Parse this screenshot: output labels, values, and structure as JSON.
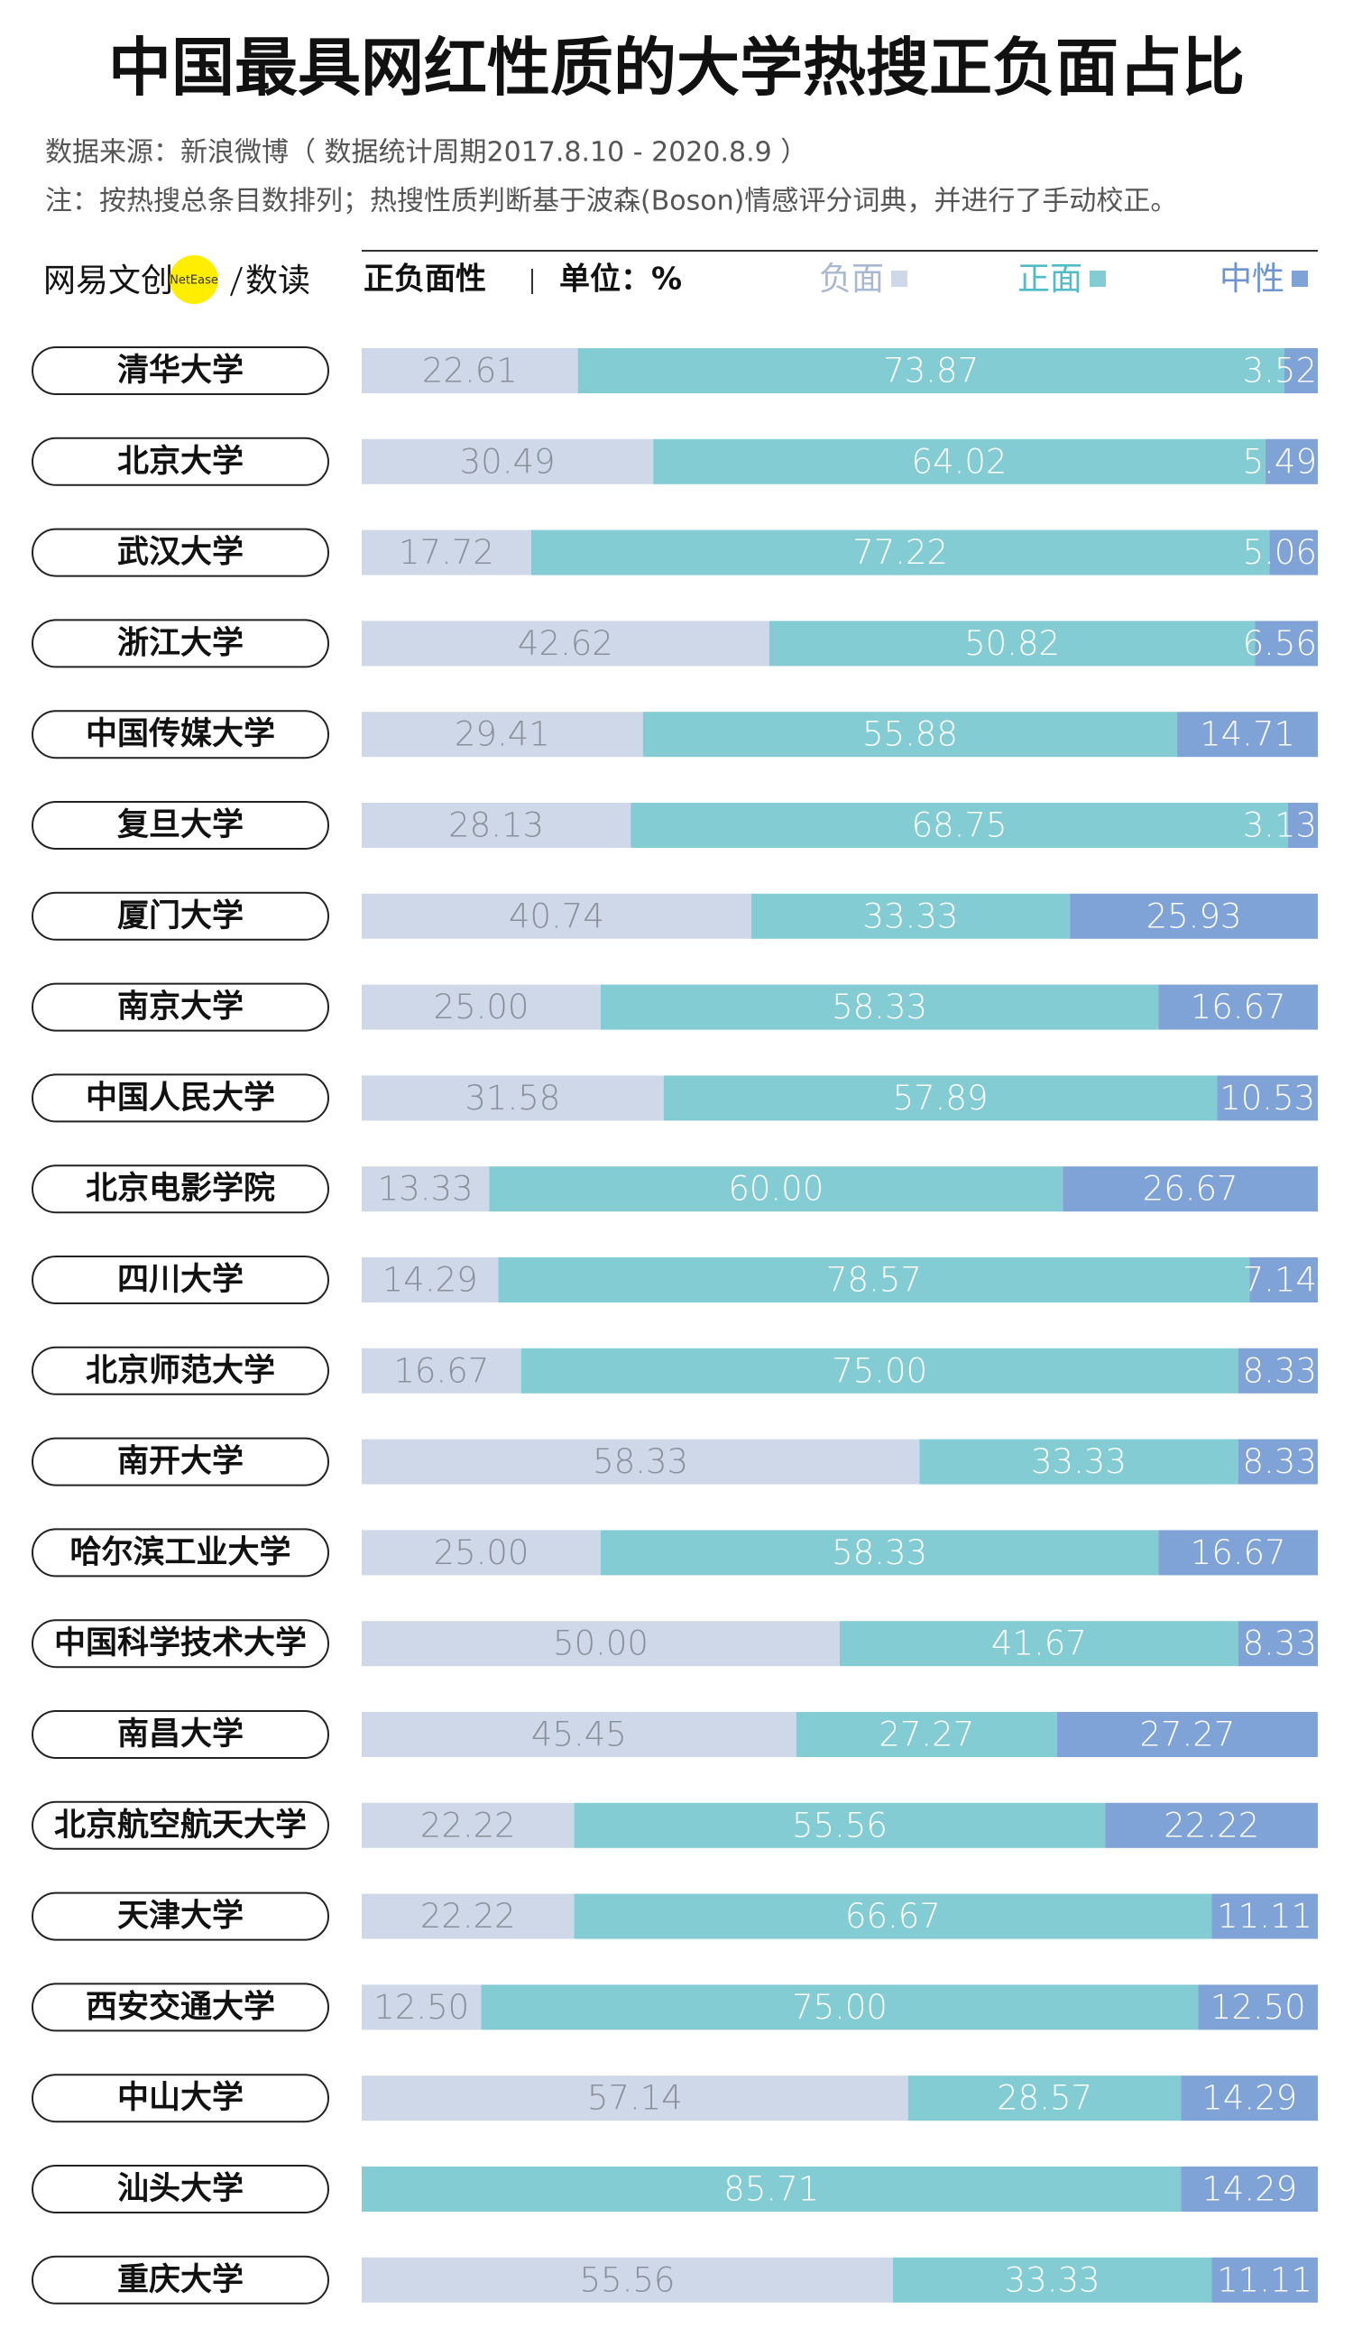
{
  "chart_data": {
    "type": "stacked_bar_100",
    "title": "中国最具网红性质的大学热搜正负面占比",
    "source": "数据来源：新浪微博（ 数据统计周期2017.8.10 - 2020.8.9 ）",
    "note": "注：按热搜总条目数排列；热搜性质判断基于波森(Boson)情感评分词典，并进行了手动校正。",
    "logo": {
      "brand": "网易文创",
      "circle": "NetEase",
      "sub": "数读"
    },
    "legend_title": "正负面性",
    "unit": "单位：%",
    "xlim": [
      0,
      100
    ],
    "categories": [
      "清华大学",
      "北京大学",
      "武汉大学",
      "浙江大学",
      "中国传媒大学",
      "复旦大学",
      "厦门大学",
      "南京大学",
      "中国人民大学",
      "北京电影学院",
      "四川大学",
      "北京师范大学",
      "南开大学",
      "哈尔滨工业大学",
      "中国科学技术大学",
      "南昌大学",
      "北京航空航天大学",
      "天津大学",
      "西安交通大学",
      "中山大学",
      "汕头大学",
      "重庆大学"
    ],
    "series": [
      {
        "name": "负面",
        "color": "#ced8e8",
        "values": [
          22.61,
          30.49,
          17.72,
          42.62,
          29.41,
          28.13,
          40.74,
          25,
          31.58,
          13.33,
          14.29,
          16.67,
          58.33,
          25,
          50,
          45.45,
          22.22,
          22.22,
          12.5,
          57.14,
          0,
          55.56
        ],
        "value_labels": [
          "22.61",
          "30.49",
          "17.72",
          "42.62",
          "29.41",
          "28.13",
          "40.74",
          "25.00",
          "31.58",
          "13.33",
          "14.29",
          "16.67",
          "58.33",
          "25.00",
          "50.00",
          "45.45",
          "22.22",
          "22.22",
          "12.50",
          "57.14",
          null,
          "55.56"
        ]
      },
      {
        "name": "正面",
        "color": "#84ccd4",
        "values": [
          73.87,
          64.02,
          77.22,
          50.82,
          55.88,
          68.75,
          33.33,
          58.33,
          57.89,
          60,
          78.57,
          75,
          33.33,
          58.33,
          41.67,
          27.27,
          55.56,
          66.67,
          75,
          28.57,
          85.71,
          33.33
        ],
        "value_labels": [
          "73.87",
          "64.02",
          "77.22",
          "50.82",
          "55.88",
          "68.75",
          "33.33",
          "58.33",
          "57.89",
          "60.00",
          "78.57",
          "75.00",
          "33.33",
          "58.33",
          "41.67",
          "27.27",
          "55.56",
          "66.67",
          "75.00",
          "28.57",
          "85.71",
          "33.33"
        ]
      },
      {
        "name": "中性",
        "color": "#7fa3d6",
        "values": [
          3.52,
          5.49,
          5.06,
          6.56,
          14.71,
          3.13,
          25.93,
          16.67,
          10.53,
          26.67,
          7.14,
          8.33,
          8.33,
          16.67,
          8.33,
          27.27,
          22.22,
          11.11,
          12.5,
          14.29,
          14.29,
          11.11
        ],
        "value_labels": [
          "3.52",
          "5.49",
          "5.06",
          "6.56",
          "14.71",
          "3.13",
          "25.93",
          "16.67",
          "10.53",
          "26.67",
          "7.14",
          "8.33",
          "8.33",
          "16.67",
          "8.33",
          "27.27",
          "22.22",
          "11.11",
          "12.50",
          "14.29",
          "14.29",
          "11.11"
        ]
      }
    ]
  }
}
